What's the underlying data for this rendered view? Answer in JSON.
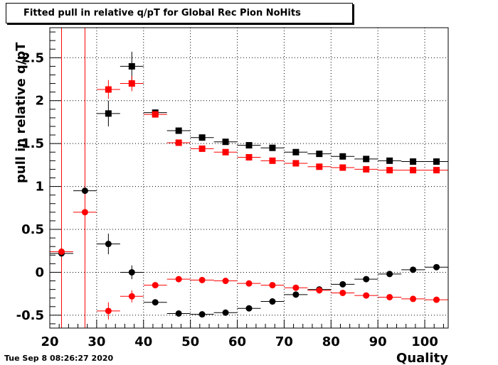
{
  "chart_data": {
    "type": "scatter",
    "title": "Fitted pull in relative q/pT for Global Rec Pion NoHits",
    "xlabel": "Quality",
    "ylabel": "pull in relative q/pT",
    "xlim": [
      20,
      105
    ],
    "ylim": [
      -0.65,
      2.85
    ],
    "xticks": [
      20,
      30,
      40,
      50,
      60,
      70,
      80,
      90,
      100
    ],
    "yticks": [
      -0.5,
      0,
      0.5,
      1,
      1.5,
      2,
      2.5
    ],
    "grid": true,
    "bin_width": 5,
    "vertical_lines_x": [
      22.5,
      27.5
    ],
    "series": [
      {
        "marker": "square",
        "color": "#000000",
        "x": [
          32.5,
          37.5,
          42.5,
          47.5,
          52.5,
          57.5,
          62.5,
          67.5,
          72.5,
          77.5,
          82.5,
          87.5,
          92.5,
          97.5,
          102.5
        ],
        "y": [
          1.85,
          2.4,
          1.86,
          1.65,
          1.57,
          1.52,
          1.48,
          1.45,
          1.4,
          1.38,
          1.35,
          1.32,
          1.3,
          1.29,
          1.29
        ],
        "yerr": [
          0.15,
          0.17,
          0.03,
          0.02,
          0.02,
          0.02,
          0.02,
          0.02,
          0.02,
          0.02,
          0.02,
          0.02,
          0.02,
          0.02,
          0.02
        ]
      },
      {
        "marker": "square",
        "color": "#ff0000",
        "x": [
          32.5,
          37.5,
          42.5,
          47.5,
          52.5,
          57.5,
          62.5,
          67.5,
          72.5,
          77.5,
          82.5,
          87.5,
          92.5,
          97.5,
          102.5
        ],
        "y": [
          2.13,
          2.2,
          1.84,
          1.51,
          1.44,
          1.4,
          1.34,
          1.3,
          1.27,
          1.23,
          1.22,
          1.2,
          1.19,
          1.19,
          1.19
        ],
        "yerr": [
          0.11,
          0.09,
          0.03,
          0.02,
          0.02,
          0.02,
          0.02,
          0.02,
          0.02,
          0.02,
          0.02,
          0.02,
          0.02,
          0.02,
          0.02
        ]
      },
      {
        "marker": "circle",
        "color": "#000000",
        "x": [
          22.5,
          27.5,
          32.5,
          37.5,
          42.5,
          47.5,
          52.5,
          57.5,
          62.5,
          67.5,
          72.5,
          77.5,
          82.5,
          87.5,
          92.5,
          97.5,
          102.5
        ],
        "y": [
          0.22,
          0.95,
          0.33,
          0.0,
          -0.35,
          -0.48,
          -0.49,
          -0.47,
          -0.42,
          -0.34,
          -0.26,
          -0.2,
          -0.14,
          -0.08,
          -0.02,
          0.03,
          0.06
        ],
        "yerr": [
          0.02,
          0.03,
          0.12,
          0.08,
          0.02,
          0.02,
          0.02,
          0.02,
          0.02,
          0.02,
          0.02,
          0.02,
          0.02,
          0.02,
          0.02,
          0.02,
          0.02
        ]
      },
      {
        "marker": "circle",
        "color": "#ff0000",
        "x": [
          22.5,
          27.5,
          32.5,
          37.5,
          42.5,
          47.5,
          52.5,
          57.5,
          62.5,
          67.5,
          72.5,
          77.5,
          82.5,
          87.5,
          92.5,
          97.5,
          102.5
        ],
        "y": [
          0.24,
          0.7,
          -0.45,
          -0.28,
          -0.15,
          -0.08,
          -0.09,
          -0.1,
          -0.13,
          -0.15,
          -0.18,
          -0.21,
          -0.24,
          -0.27,
          -0.29,
          -0.31,
          -0.32
        ],
        "yerr": [
          0.02,
          0.03,
          0.1,
          0.07,
          0.02,
          0.02,
          0.02,
          0.02,
          0.02,
          0.02,
          0.02,
          0.02,
          0.02,
          0.02,
          0.02,
          0.02,
          0.02
        ]
      }
    ]
  },
  "footer": {
    "timestamp": "Tue Sep  8 08:26:27 2020"
  }
}
